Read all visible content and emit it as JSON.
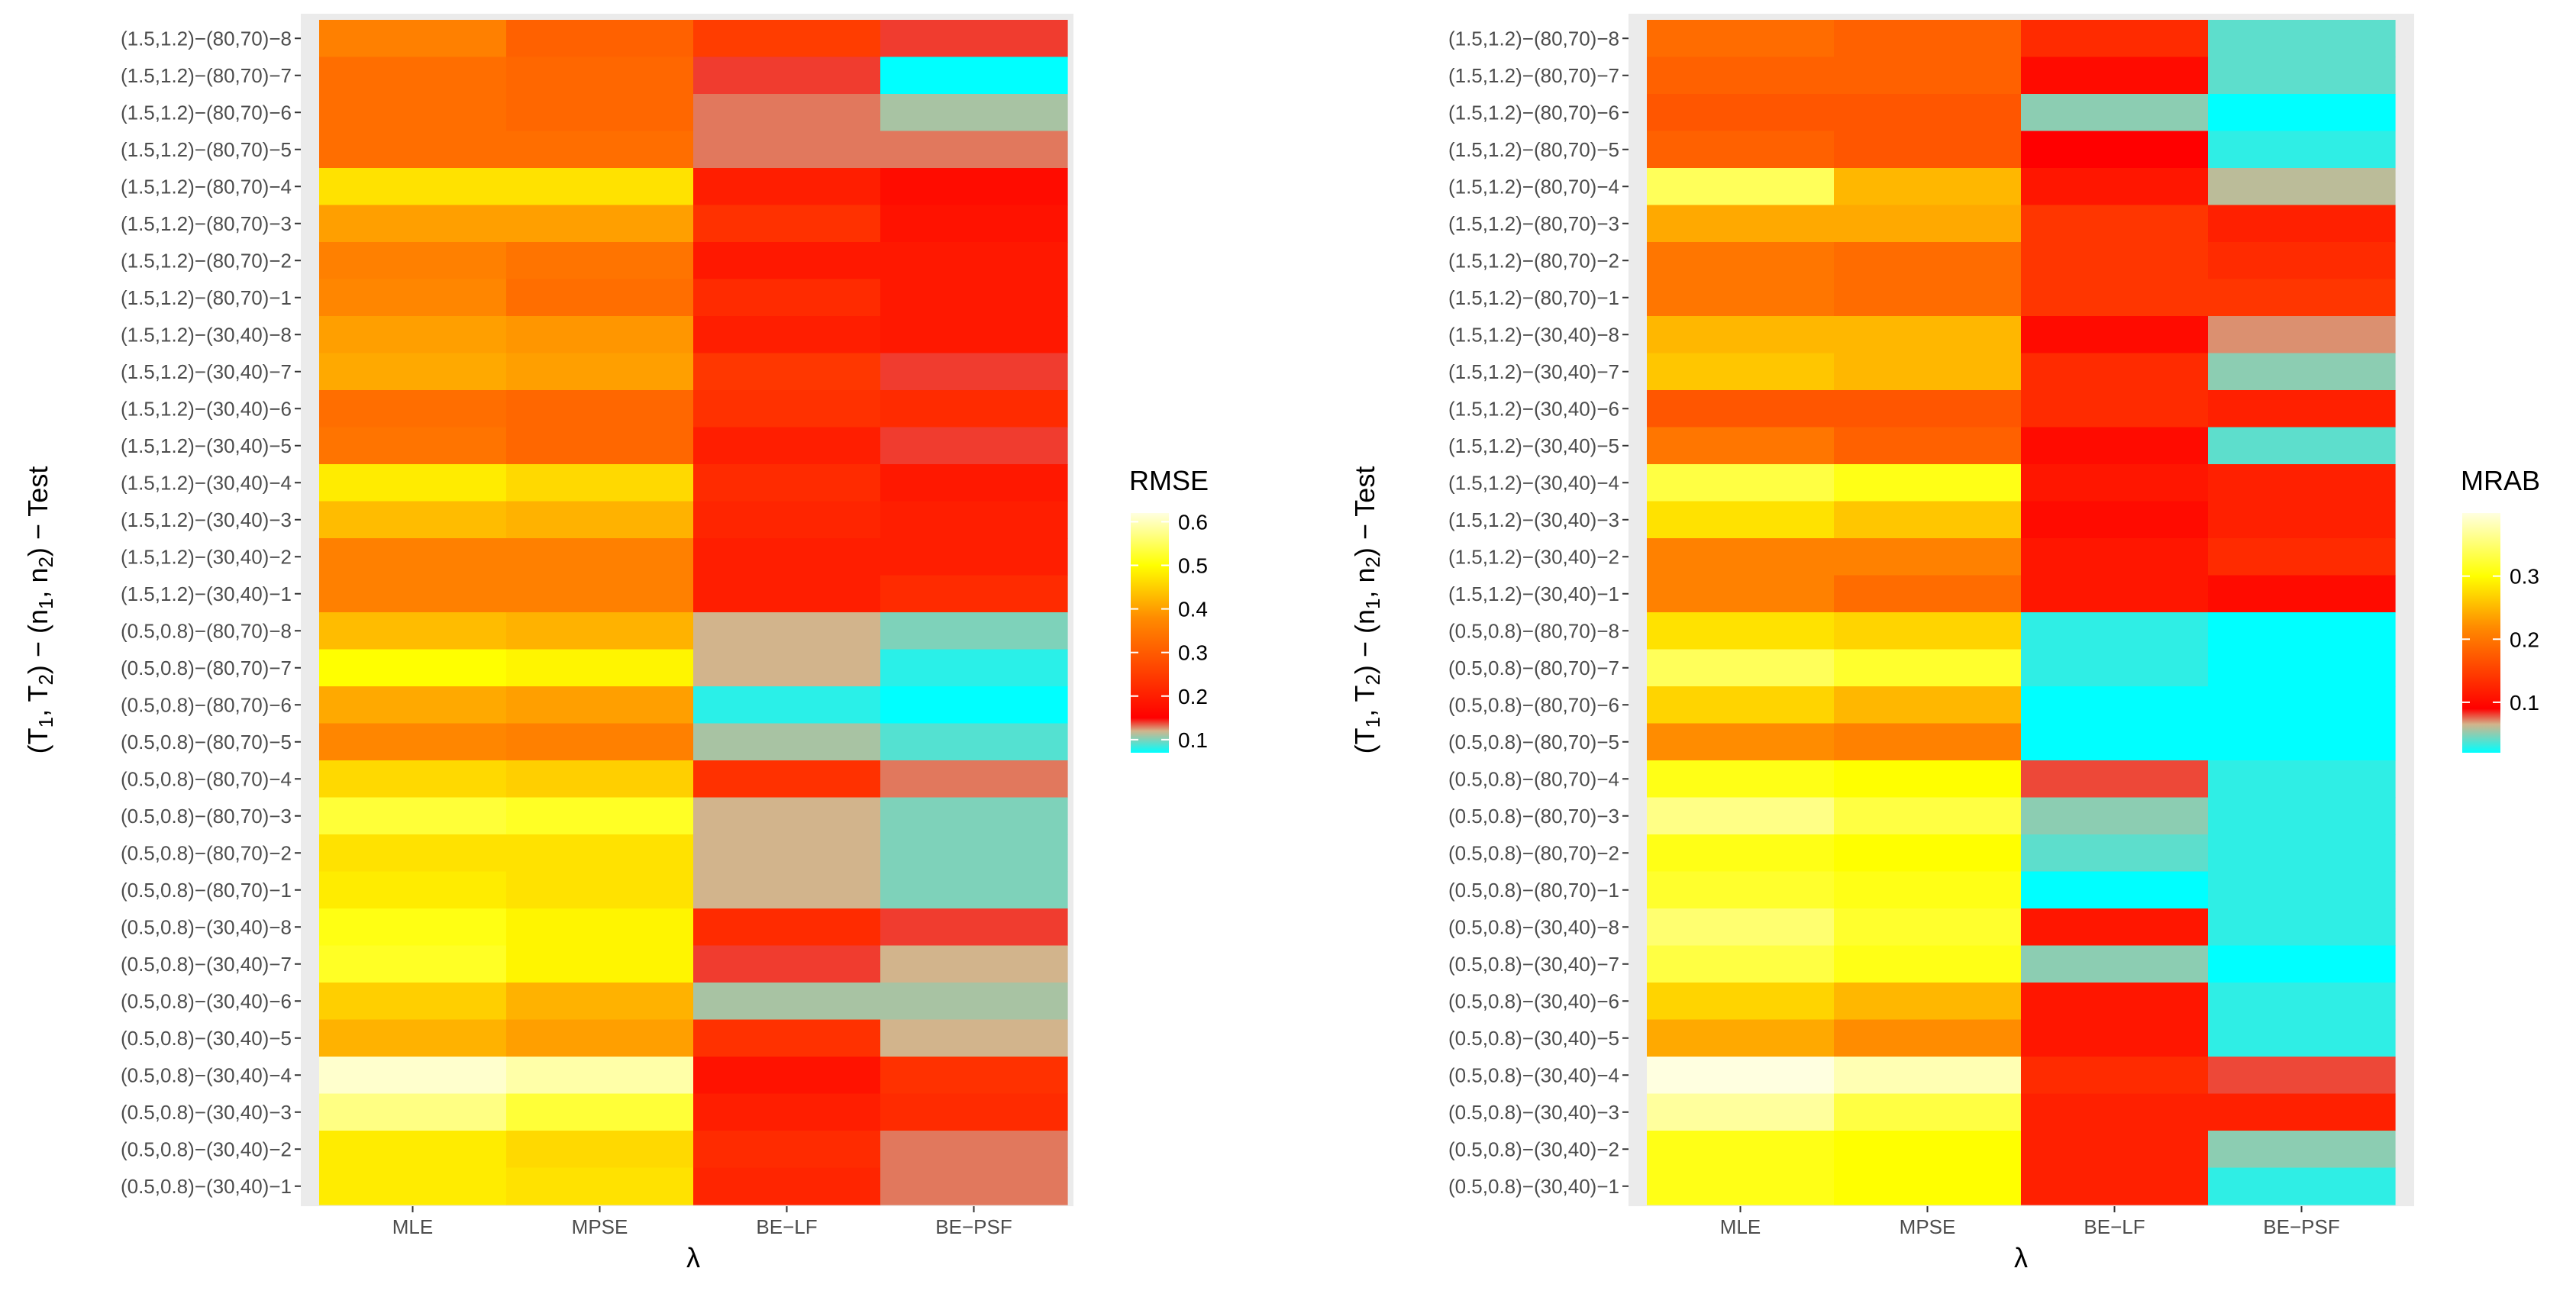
{
  "chart_data": [
    {
      "type": "heatmap",
      "metric": "RMSE",
      "xlabel": "λ",
      "ylabel": "(T₁, T₂) − (n₁, n₂) − Test",
      "ylabel_parts": [
        "(T",
        "1",
        ", T",
        "2",
        ") − (n",
        "1",
        ", n",
        "2",
        ") − Test"
      ],
      "categories_x": [
        "MLE",
        "MPSE",
        "BE−LF",
        "BE−PSF"
      ],
      "categories_y": [
        "(1.5,1.2)−(80,70)−8",
        "(1.5,1.2)−(80,70)−7",
        "(1.5,1.2)−(80,70)−6",
        "(1.5,1.2)−(80,70)−5",
        "(1.5,1.2)−(80,70)−4",
        "(1.5,1.2)−(80,70)−3",
        "(1.5,1.2)−(80,70)−2",
        "(1.5,1.2)−(80,70)−1",
        "(1.5,1.2)−(30,40)−8",
        "(1.5,1.2)−(30,40)−7",
        "(1.5,1.2)−(30,40)−6",
        "(1.5,1.2)−(30,40)−5",
        "(1.5,1.2)−(30,40)−4",
        "(1.5,1.2)−(30,40)−3",
        "(1.5,1.2)−(30,40)−2",
        "(1.5,1.2)−(30,40)−1",
        "(0.5,0.8)−(80,70)−8",
        "(0.5,0.8)−(80,70)−7",
        "(0.5,0.8)−(80,70)−6",
        "(0.5,0.8)−(80,70)−5",
        "(0.5,0.8)−(80,70)−4",
        "(0.5,0.8)−(80,70)−3",
        "(0.5,0.8)−(80,70)−2",
        "(0.5,0.8)−(80,70)−1",
        "(0.5,0.8)−(30,40)−8",
        "(0.5,0.8)−(30,40)−7",
        "(0.5,0.8)−(30,40)−6",
        "(0.5,0.8)−(30,40)−5",
        "(0.5,0.8)−(30,40)−4",
        "(0.5,0.8)−(30,40)−3",
        "(0.5,0.8)−(30,40)−2",
        "(0.5,0.8)−(30,40)−1"
      ],
      "values": [
        [
          0.36,
          0.31,
          0.25,
          0.14
        ],
        [
          0.33,
          0.32,
          0.14,
          0.06
        ],
        [
          0.33,
          0.32,
          0.13,
          0.11
        ],
        [
          0.33,
          0.33,
          0.13,
          0.13
        ],
        [
          0.47,
          0.47,
          0.2,
          0.17
        ],
        [
          0.4,
          0.4,
          0.23,
          0.18
        ],
        [
          0.36,
          0.34,
          0.19,
          0.19
        ],
        [
          0.37,
          0.33,
          0.22,
          0.19
        ],
        [
          0.4,
          0.39,
          0.2,
          0.19
        ],
        [
          0.41,
          0.4,
          0.24,
          0.14
        ],
        [
          0.33,
          0.32,
          0.23,
          0.22
        ],
        [
          0.34,
          0.32,
          0.2,
          0.14
        ],
        [
          0.48,
          0.46,
          0.22,
          0.19
        ],
        [
          0.43,
          0.42,
          0.21,
          0.2
        ],
        [
          0.36,
          0.36,
          0.2,
          0.2
        ],
        [
          0.36,
          0.36,
          0.2,
          0.22
        ],
        [
          0.43,
          0.42,
          0.12,
          0.1
        ],
        [
          0.5,
          0.49,
          0.12,
          0.08
        ],
        [
          0.41,
          0.4,
          0.08,
          0.07
        ],
        [
          0.37,
          0.36,
          0.11,
          0.09
        ],
        [
          0.46,
          0.45,
          0.23,
          0.13
        ],
        [
          0.53,
          0.52,
          0.12,
          0.1
        ],
        [
          0.47,
          0.47,
          0.12,
          0.1
        ],
        [
          0.48,
          0.47,
          0.12,
          0.1
        ],
        [
          0.51,
          0.49,
          0.22,
          0.14
        ],
        [
          0.52,
          0.49,
          0.14,
          0.12
        ],
        [
          0.45,
          0.42,
          0.11,
          0.11
        ],
        [
          0.42,
          0.4,
          0.23,
          0.12
        ],
        [
          0.61,
          0.59,
          0.18,
          0.23
        ],
        [
          0.57,
          0.53,
          0.2,
          0.22
        ],
        [
          0.48,
          0.46,
          0.22,
          0.13
        ],
        [
          0.48,
          0.47,
          0.21,
          0.13
        ]
      ],
      "legend_title": "RMSE",
      "legend_position": "right",
      "legend_ticks": [
        0.1,
        0.2,
        0.3,
        0.4,
        0.5,
        0.6
      ],
      "legend_tick_labels": [
        "0.1",
        "0.2",
        "0.3",
        "0.4",
        "0.5",
        "0.6"
      ],
      "value_range": [
        0.07,
        0.62
      ],
      "gradient": [
        {
          "v": 0.07,
          "color": "#00ffff"
        },
        {
          "v": 0.12,
          "color": "#d2b48c"
        },
        {
          "v": 0.15,
          "color": "#ff0000"
        },
        {
          "v": 0.38,
          "color": "#ff8c00"
        },
        {
          "v": 0.5,
          "color": "#ffff00"
        },
        {
          "v": 0.62,
          "color": "#ffffe0"
        }
      ]
    },
    {
      "type": "heatmap",
      "metric": "MRAB",
      "xlabel": "λ",
      "ylabel": "(T₁, T₂) − (n₁, n₂) − Test",
      "ylabel_parts": [
        "(T",
        "1",
        ", T",
        "2",
        ") − (n",
        "1",
        ", n",
        "2",
        ") − Test"
      ],
      "categories_x": [
        "MLE",
        "MPSE",
        "BE−LF",
        "BE−PSF"
      ],
      "categories_y": [
        "(1.5,1.2)−(80,70)−8",
        "(1.5,1.2)−(80,70)−7",
        "(1.5,1.2)−(80,70)−6",
        "(1.5,1.2)−(80,70)−5",
        "(1.5,1.2)−(80,70)−4",
        "(1.5,1.2)−(80,70)−3",
        "(1.5,1.2)−(80,70)−2",
        "(1.5,1.2)−(80,70)−1",
        "(1.5,1.2)−(30,40)−8",
        "(1.5,1.2)−(30,40)−7",
        "(1.5,1.2)−(30,40)−6",
        "(1.5,1.2)−(30,40)−5",
        "(1.5,1.2)−(30,40)−4",
        "(1.5,1.2)−(30,40)−3",
        "(1.5,1.2)−(30,40)−2",
        "(1.5,1.2)−(30,40)−1",
        "(0.5,0.8)−(80,70)−8",
        "(0.5,0.8)−(80,70)−7",
        "(0.5,0.8)−(80,70)−6",
        "(0.5,0.8)−(80,70)−5",
        "(0.5,0.8)−(80,70)−4",
        "(0.5,0.8)−(80,70)−3",
        "(0.5,0.8)−(80,70)−2",
        "(0.5,0.8)−(80,70)−1",
        "(0.5,0.8)−(30,40)−8",
        "(0.5,0.8)−(30,40)−7",
        "(0.5,0.8)−(30,40)−6",
        "(0.5,0.8)−(30,40)−5",
        "(0.5,0.8)−(30,40)−4",
        "(0.5,0.8)−(30,40)−3",
        "(0.5,0.8)−(30,40)−2",
        "(0.5,0.8)−(30,40)−1"
      ],
      "values": [
        [
          0.19,
          0.18,
          0.13,
          0.04
        ],
        [
          0.18,
          0.18,
          0.1,
          0.04
        ],
        [
          0.17,
          0.17,
          0.05,
          0.02
        ],
        [
          0.18,
          0.17,
          0.09,
          0.03
        ],
        [
          0.34,
          0.25,
          0.11,
          0.06
        ],
        [
          0.24,
          0.24,
          0.14,
          0.12
        ],
        [
          0.2,
          0.19,
          0.14,
          0.13
        ],
        [
          0.2,
          0.19,
          0.14,
          0.14
        ],
        [
          0.25,
          0.25,
          0.1,
          0.07
        ],
        [
          0.26,
          0.25,
          0.13,
          0.05
        ],
        [
          0.17,
          0.17,
          0.13,
          0.12
        ],
        [
          0.2,
          0.18,
          0.1,
          0.04
        ],
        [
          0.33,
          0.31,
          0.11,
          0.12
        ],
        [
          0.28,
          0.26,
          0.1,
          0.12
        ],
        [
          0.21,
          0.21,
          0.11,
          0.13
        ],
        [
          0.21,
          0.19,
          0.11,
          0.1
        ],
        [
          0.28,
          0.27,
          0.03,
          0.02
        ],
        [
          0.34,
          0.32,
          0.03,
          0.02
        ],
        [
          0.27,
          0.25,
          0.02,
          0.02
        ],
        [
          0.22,
          0.21,
          0.02,
          0.02
        ],
        [
          0.31,
          0.3,
          0.08,
          0.03
        ],
        [
          0.36,
          0.33,
          0.05,
          0.03
        ],
        [
          0.31,
          0.3,
          0.04,
          0.03
        ],
        [
          0.32,
          0.31,
          0.02,
          0.03
        ],
        [
          0.35,
          0.32,
          0.11,
          0.03
        ],
        [
          0.33,
          0.31,
          0.05,
          0.02
        ],
        [
          0.27,
          0.25,
          0.11,
          0.03
        ],
        [
          0.24,
          0.22,
          0.11,
          0.03
        ],
        [
          0.4,
          0.38,
          0.13,
          0.08
        ],
        [
          0.37,
          0.33,
          0.12,
          0.12
        ],
        [
          0.31,
          0.3,
          0.12,
          0.05
        ],
        [
          0.31,
          0.3,
          0.12,
          0.03
        ]
      ],
      "legend_title": "MRAB",
      "legend_position": "right",
      "legend_ticks": [
        0.1,
        0.2,
        0.3
      ],
      "legend_tick_labels": [
        "0.1",
        "0.2",
        "0.3"
      ],
      "value_range": [
        0.02,
        0.4
      ],
      "gradient": [
        {
          "v": 0.02,
          "color": "#00ffff"
        },
        {
          "v": 0.065,
          "color": "#d2b48c"
        },
        {
          "v": 0.09,
          "color": "#ff0000"
        },
        {
          "v": 0.22,
          "color": "#ff8c00"
        },
        {
          "v": 0.3,
          "color": "#ffff00"
        },
        {
          "v": 0.4,
          "color": "#ffffe0"
        }
      ]
    }
  ]
}
